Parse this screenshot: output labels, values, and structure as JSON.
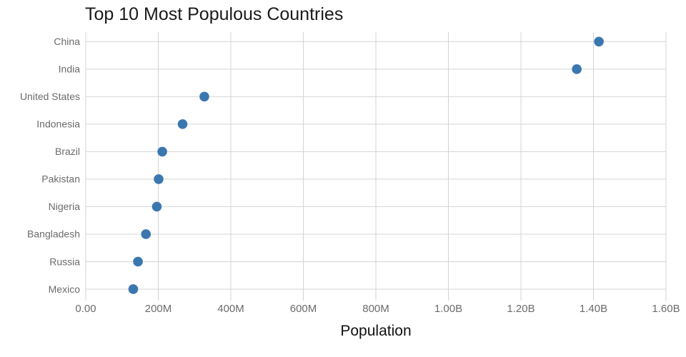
{
  "chart_data": {
    "type": "scatter",
    "title": "Top 10 Most Populous Countries",
    "xlabel": "Population",
    "ylabel": "",
    "categories": [
      "China",
      "India",
      "United States",
      "Indonesia",
      "Brazil",
      "Pakistan",
      "Nigeria",
      "Bangladesh",
      "Russia",
      "Mexico"
    ],
    "values": [
      1415000000,
      1354000000,
      327000000,
      267000000,
      211000000,
      201000000,
      196000000,
      166000000,
      144000000,
      131000000
    ],
    "xlim": [
      0,
      1600000000
    ],
    "x_ticks": [
      {
        "value": 0,
        "label": "0.00"
      },
      {
        "value": 200000000,
        "label": "200M"
      },
      {
        "value": 400000000,
        "label": "400M"
      },
      {
        "value": 600000000,
        "label": "600M"
      },
      {
        "value": 800000000,
        "label": "800M"
      },
      {
        "value": 1000000000,
        "label": "1.00B"
      },
      {
        "value": 1200000000,
        "label": "1.20B"
      },
      {
        "value": 1400000000,
        "label": "1.40B"
      },
      {
        "value": 1600000000,
        "label": "1.60B"
      }
    ],
    "grid": true,
    "legend_position": "none",
    "marker_color": "#3b77af",
    "grid_color": "#d4d4d4",
    "tick_label_color": "#6b6b6b",
    "title_color": "#1a1a1a",
    "axis_title_color": "#111111",
    "background_color": "#ffffff"
  }
}
